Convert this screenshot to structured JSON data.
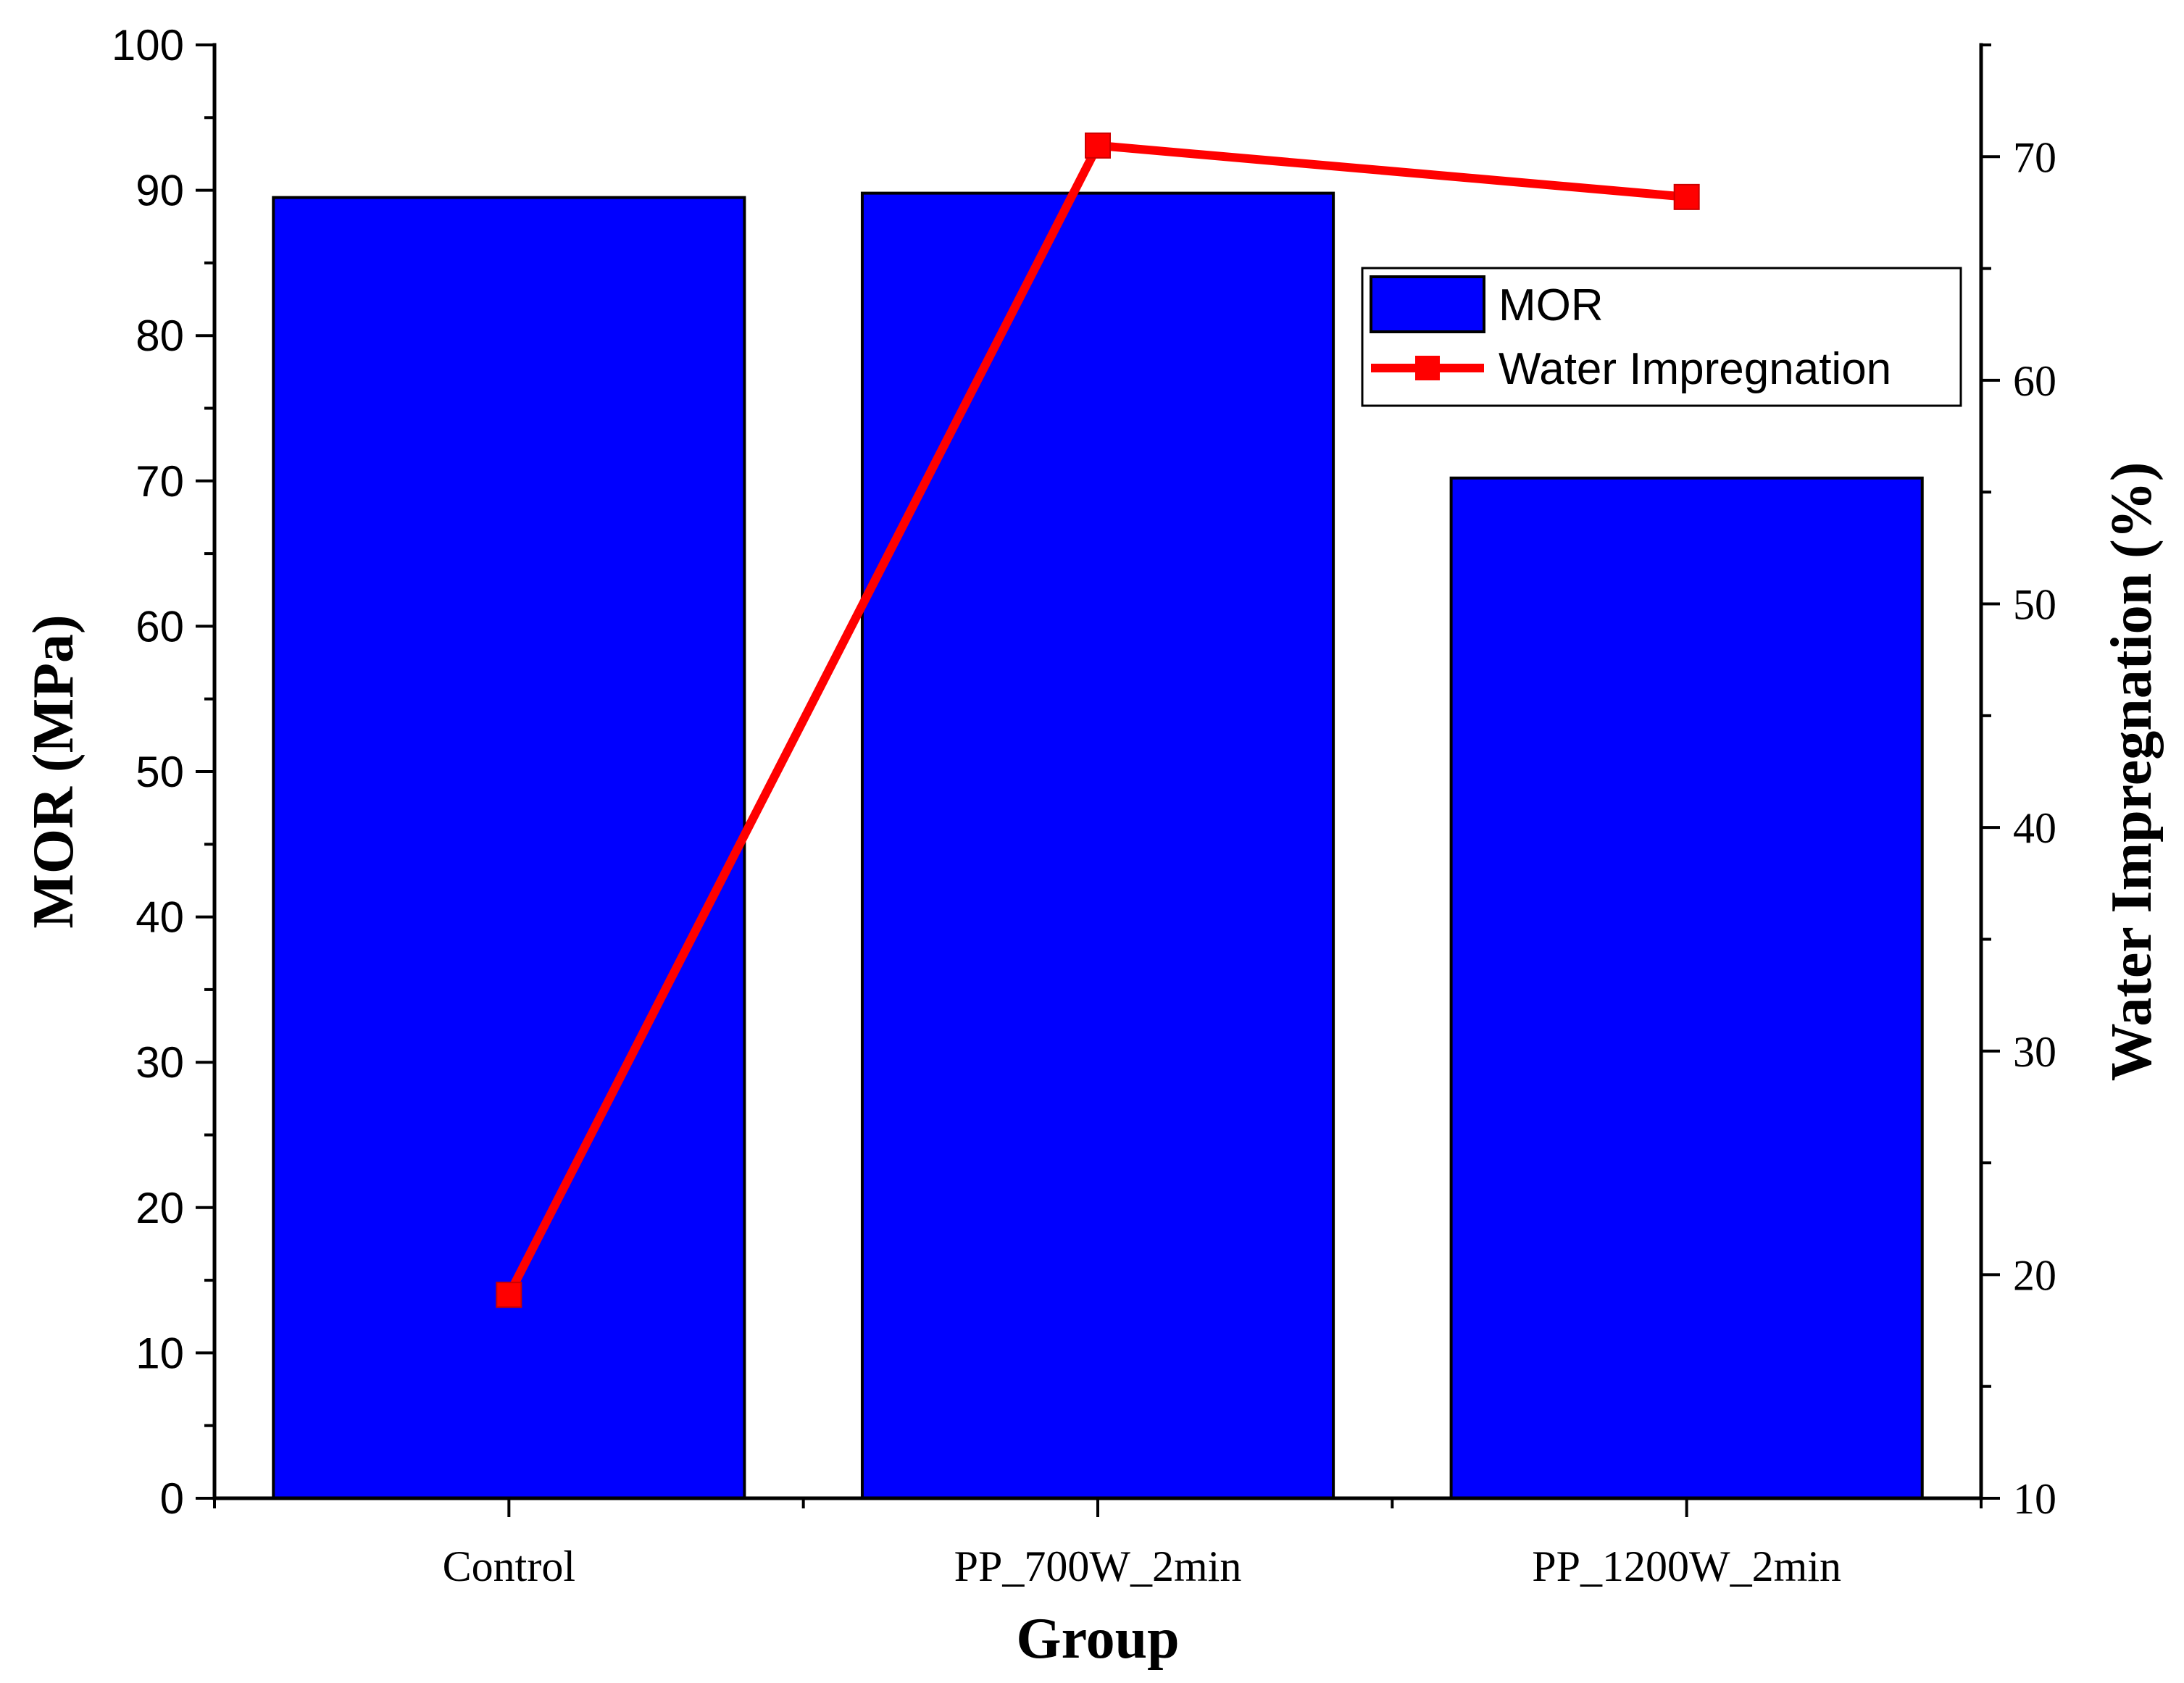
{
  "chart_data": {
    "type": "bar",
    "categories": [
      "Control",
      "PP_700W_2min",
      "PP_1200W_2min"
    ],
    "series": [
      {
        "name": "MOR",
        "type": "bar",
        "axis": "left",
        "values": [
          89.5,
          89.8,
          70.2
        ],
        "color": "#0000ff"
      },
      {
        "name": "Water Impregnation",
        "type": "line",
        "axis": "right",
        "values": [
          19.1,
          70.5,
          68.2
        ],
        "color": "#ff0000"
      }
    ],
    "xlabel": "Group",
    "ylabel": "MOR (MPa)",
    "y2label": "Water Impregnation (%)",
    "ylim": [
      0,
      100
    ],
    "y2lim": [
      10,
      75
    ],
    "yticks": [
      "0",
      "10",
      "20",
      "30",
      "40",
      "50",
      "60",
      "70",
      "80",
      "90",
      "100"
    ],
    "y2ticks": [
      "10",
      "20",
      "30",
      "40",
      "50",
      "60",
      "70"
    ],
    "legend_position": "top-right",
    "grid": false,
    "bar_edge_color": "#000000"
  }
}
